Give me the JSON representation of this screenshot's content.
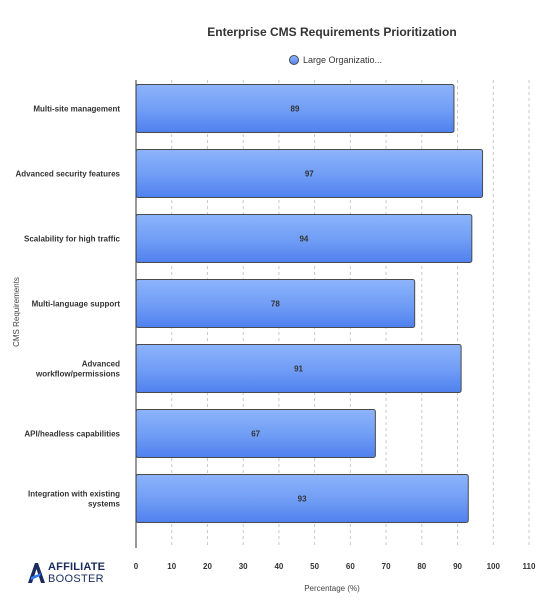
{
  "chart_data": {
    "type": "bar",
    "orientation": "horizontal",
    "title": "Enterprise CMS Requirements Prioritization",
    "categories": [
      "Multi-site management",
      "Advanced security features",
      "Scalability for high traffic",
      "Multi-language support",
      "Advanced workflow/permissions",
      "API/headless capabilities",
      "Integration with existing systems"
    ],
    "category_lines": [
      [
        "Multi-site management"
      ],
      [
        "Advanced security features"
      ],
      [
        "Scalability for high traffic"
      ],
      [
        "Multi-language support"
      ],
      [
        "Advanced",
        "workflow/permissions"
      ],
      [
        "API/headless capabilities"
      ],
      [
        "Integration with existing",
        "systems"
      ]
    ],
    "series": [
      {
        "name": "Large Organizatio...",
        "values": [
          89,
          97,
          94,
          78,
          91,
          67,
          93
        ],
        "color": "#6f9cf5"
      }
    ],
    "xlabel": "Percentage (%)",
    "ylabel": "CMS Requirements",
    "xlim": [
      0,
      110
    ],
    "xticks": [
      0,
      10,
      20,
      30,
      40,
      50,
      60,
      70,
      80,
      90,
      100,
      110
    ],
    "grid": true,
    "legend_position": "top-center"
  },
  "branding": {
    "logo_line1": "AFFILIATE",
    "logo_line2": "BOOSTER",
    "logo_color": "#1a2b5c",
    "logo_accent": "#2f7cf6"
  }
}
